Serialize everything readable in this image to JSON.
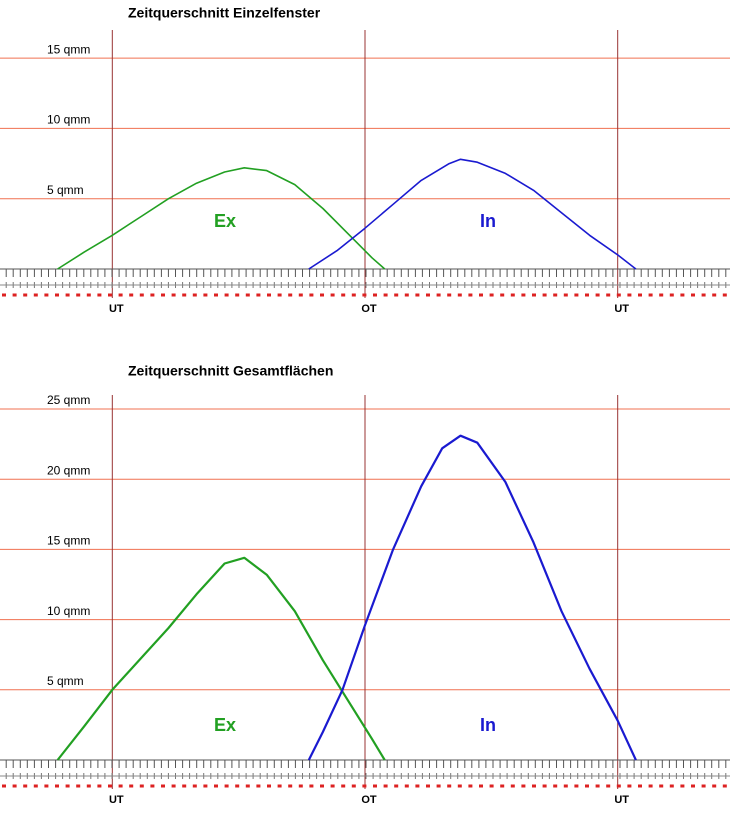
{
  "chart_data": [
    {
      "type": "line",
      "title": "Zeitquerschnitt Einzelfenster",
      "xlim": [
        100,
        620
      ],
      "xticks": [
        {
          "value": 180,
          "label": "UT"
        },
        {
          "value": 360,
          "label": "OT"
        },
        {
          "value": 540,
          "label": "UT"
        }
      ],
      "ylim": [
        0,
        17
      ],
      "yticks": [
        {
          "value": 5,
          "label": "5 qmm"
        },
        {
          "value": 10,
          "label": "10 qmm"
        },
        {
          "value": 15,
          "label": "15 qmm"
        }
      ],
      "grid": true,
      "series": [
        {
          "name": "Ex",
          "color": "#22a022",
          "x": [
            141,
            160,
            180,
            200,
            220,
            240,
            260,
            274,
            290,
            310,
            330,
            350,
            365,
            374
          ],
          "values": [
            0,
            1.2,
            2.4,
            3.7,
            5.0,
            6.1,
            6.9,
            7.2,
            7.0,
            6.0,
            4.3,
            2.3,
            0.8,
            0
          ]
        },
        {
          "name": "In",
          "color": "#1a1ad0",
          "x": [
            320,
            340,
            360,
            380,
            400,
            420,
            428,
            440,
            460,
            480,
            500,
            520,
            540,
            553
          ],
          "values": [
            0,
            1.3,
            2.9,
            4.6,
            6.3,
            7.5,
            7.8,
            7.6,
            6.8,
            5.6,
            4.0,
            2.4,
            1.0,
            0
          ]
        }
      ]
    },
    {
      "type": "line",
      "title": "Zeitquerschnitt Gesamtflächen",
      "xlim": [
        100,
        620
      ],
      "xticks": [
        {
          "value": 180,
          "label": "UT"
        },
        {
          "value": 360,
          "label": "OT"
        },
        {
          "value": 540,
          "label": "UT"
        }
      ],
      "ylim": [
        0,
        26
      ],
      "yticks": [
        {
          "value": 5,
          "label": "5 qmm"
        },
        {
          "value": 10,
          "label": "10 qmm"
        },
        {
          "value": 15,
          "label": "15 qmm"
        },
        {
          "value": 20,
          "label": "20 qmm"
        },
        {
          "value": 25,
          "label": "25 qmm"
        }
      ],
      "grid": true,
      "series": [
        {
          "name": "Ex",
          "color": "#22a022",
          "x": [
            141,
            160,
            180,
            200,
            220,
            240,
            260,
            274,
            290,
            310,
            330,
            350,
            365,
            374
          ],
          "values": [
            0,
            2.4,
            5.0,
            7.2,
            9.4,
            11.8,
            14.0,
            14.4,
            13.2,
            10.6,
            7.1,
            3.9,
            1.5,
            0
          ]
        },
        {
          "name": "In",
          "color": "#1a1ad0",
          "x": [
            320,
            330,
            344,
            360,
            380,
            400,
            415,
            428,
            440,
            460,
            480,
            500,
            520,
            540,
            553
          ],
          "values": [
            0,
            2.0,
            5.0,
            9.6,
            15.0,
            19.5,
            22.2,
            23.1,
            22.6,
            19.8,
            15.5,
            10.6,
            6.5,
            2.8,
            0
          ]
        }
      ]
    }
  ]
}
